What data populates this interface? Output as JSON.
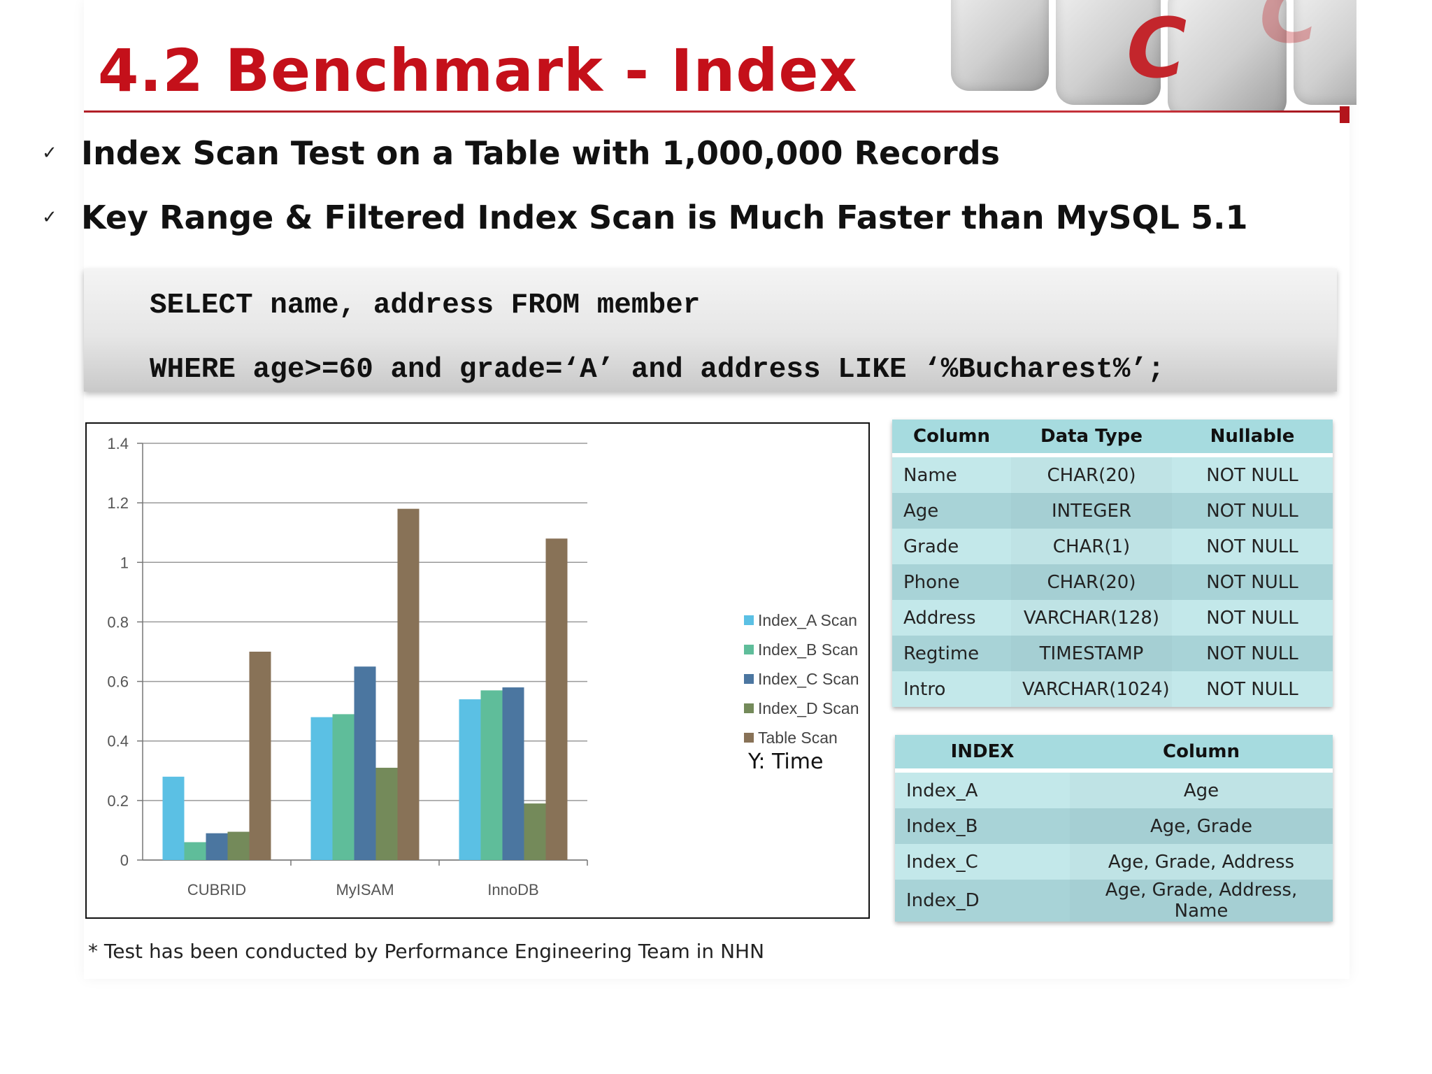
{
  "title": "4.2 Benchmark - Index",
  "bullets": [
    {
      "icon": "checkmark-icon",
      "mark": "✓",
      "text": "Index Scan Test on a Table with 1,000,000 Records"
    },
    {
      "icon": "checkmark-icon",
      "mark": "✓",
      "text": "Key Range & Filtered Index Scan is Much Faster than MySQL 5.1"
    }
  ],
  "sql": {
    "line1": "SELECT name, address FROM member",
    "line2": "WHERE age>=60 and grade=‘A’ and address LIKE ‘%Bucharest%’;"
  },
  "decoration": {
    "letters": [
      "C",
      "C"
    ]
  },
  "chart_data": {
    "type": "bar",
    "title": "",
    "xlabel": "",
    "ylabel": "",
    "y_note": "Y: Time",
    "categories": [
      "CUBRID",
      "MyISAM",
      "InnoDB"
    ],
    "ylim": [
      0,
      1.4
    ],
    "yticks": [
      0,
      0.2,
      0.4,
      0.6,
      0.8,
      1,
      1.2,
      1.4
    ],
    "ytick_labels": [
      "0",
      "0.2",
      "0.4",
      "0.6",
      "0.8",
      "1",
      "1.2",
      "1.4"
    ],
    "grid": true,
    "legend_position": "right",
    "series": [
      {
        "name": "Index_A Scan",
        "color": "#5bc0e4",
        "values": [
          0.28,
          0.48,
          0.54
        ]
      },
      {
        "name": "Index_B Scan",
        "color": "#5fbd9a",
        "values": [
          0.06,
          0.49,
          0.57
        ]
      },
      {
        "name": "Index_C Scan",
        "color": "#4b76a0",
        "values": [
          0.09,
          0.65,
          0.58
        ]
      },
      {
        "name": "Index_D Scan",
        "color": "#748a5a",
        "values": [
          0.095,
          0.31,
          0.19
        ]
      },
      {
        "name": "Table Scan",
        "color": "#887257",
        "values": [
          0.7,
          1.18,
          1.08
        ]
      }
    ]
  },
  "columns_table": {
    "headers": [
      "Column",
      "Data Type",
      "Nullable"
    ],
    "rows": [
      [
        "Name",
        "CHAR(20)",
        "NOT NULL"
      ],
      [
        "Age",
        "INTEGER",
        "NOT NULL"
      ],
      [
        "Grade",
        "CHAR(1)",
        "NOT NULL"
      ],
      [
        "Phone",
        "CHAR(20)",
        "NOT NULL"
      ],
      [
        "Address",
        "VARCHAR(128)",
        "NOT NULL"
      ],
      [
        "Regtime",
        "TIMESTAMP",
        "NOT NULL"
      ],
      [
        "Intro",
        "VARCHAR(1024)",
        "NOT NULL"
      ]
    ]
  },
  "index_table": {
    "headers": [
      "INDEX",
      "Column"
    ],
    "rows": [
      [
        "Index_A",
        "Age"
      ],
      [
        "Index_B",
        "Age, Grade"
      ],
      [
        "Index_C",
        "Age, Grade, Address"
      ],
      [
        "Index_D",
        "Age, Grade, Address, Name"
      ]
    ]
  },
  "footnote": "* Test has been conducted by Performance Engineering Team in NHN"
}
